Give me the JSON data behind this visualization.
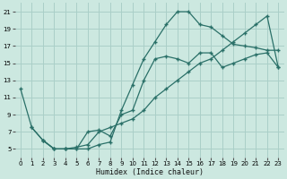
{
  "xlabel": "Humidex (Indice chaleur)",
  "xlim": [
    -0.5,
    23.5
  ],
  "ylim": [
    4,
    22
  ],
  "xticks": [
    0,
    1,
    2,
    3,
    4,
    5,
    6,
    7,
    8,
    9,
    10,
    11,
    12,
    13,
    14,
    15,
    16,
    17,
    18,
    19,
    20,
    21,
    22,
    23
  ],
  "yticks": [
    5,
    7,
    9,
    11,
    13,
    15,
    17,
    19,
    21
  ],
  "background_color": "#cce8e0",
  "grid_color": "#aacfc8",
  "line_color": "#2a7068",
  "line1_x": [
    0,
    1,
    2,
    3,
    4,
    5,
    6,
    7,
    8,
    9,
    10,
    11,
    12,
    13,
    14,
    15,
    16,
    17,
    18,
    19,
    20,
    21,
    22,
    23
  ],
  "line1_y": [
    12.0,
    7.5,
    6.0,
    5.0,
    5.0,
    5.0,
    7.0,
    7.2,
    6.5,
    9.0,
    9.5,
    13.0,
    15.5,
    15.8,
    15.5,
    15.0,
    16.2,
    16.2,
    14.5,
    15.0,
    15.5,
    16.0,
    16.2,
    14.5
  ],
  "line2_x": [
    1,
    2,
    3,
    4,
    5,
    6,
    7,
    8,
    9,
    10,
    11,
    12,
    13,
    14,
    15,
    16,
    17,
    18,
    19,
    20,
    21,
    22,
    23
  ],
  "line2_y": [
    7.5,
    6.0,
    5.0,
    5.0,
    5.0,
    5.0,
    5.5,
    5.8,
    9.5,
    12.5,
    15.5,
    17.5,
    19.5,
    21.0,
    21.0,
    19.5,
    19.2,
    18.2,
    17.2,
    17.0,
    16.8,
    16.5,
    16.5
  ],
  "line3_x": [
    2,
    3,
    4,
    5,
    6,
    7,
    8,
    9,
    10,
    11,
    12,
    13,
    14,
    15,
    16,
    17,
    18,
    19,
    20,
    21,
    22,
    23
  ],
  "line3_y": [
    6.0,
    5.0,
    5.0,
    5.2,
    5.5,
    7.0,
    7.5,
    8.0,
    8.5,
    9.5,
    11.0,
    12.0,
    13.0,
    14.0,
    15.0,
    15.5,
    16.5,
    17.5,
    18.5,
    19.5,
    20.5,
    14.5
  ]
}
